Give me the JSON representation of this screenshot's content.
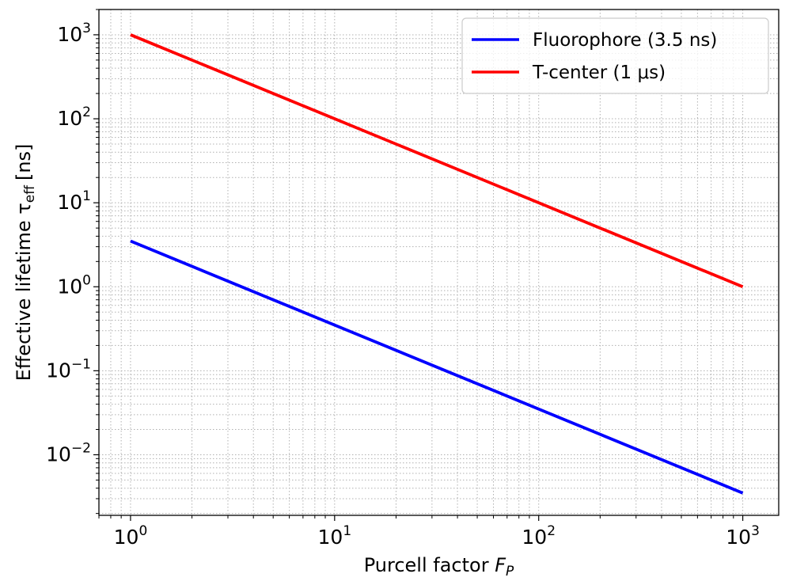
{
  "chart_data": {
    "type": "line",
    "title": "",
    "xlabel": "Purcell factor F_P",
    "xlabel_parts": {
      "base": "Purcell factor ",
      "symbol": "F",
      "subscript": "P"
    },
    "ylabel": "Effective lifetime τ_eff [ns]",
    "ylabel_parts": {
      "base": "Effective lifetime τ",
      "subscript": "eff",
      "unit": "[ns]"
    },
    "x_scale": "log",
    "y_scale": "log",
    "xlim": [
      0.7,
      1500
    ],
    "ylim": [
      0.0019,
      2000
    ],
    "x_ticks": [
      {
        "value": 1,
        "base": "10",
        "exp": "0"
      },
      {
        "value": 10,
        "base": "10",
        "exp": "1"
      },
      {
        "value": 100,
        "base": "10",
        "exp": "2"
      },
      {
        "value": 1000,
        "base": "10",
        "exp": "3"
      }
    ],
    "y_ticks": [
      {
        "value": 0.01,
        "base": "10",
        "exp": "−2"
      },
      {
        "value": 0.1,
        "base": "10",
        "exp": "−1"
      },
      {
        "value": 1,
        "base": "10",
        "exp": "0"
      },
      {
        "value": 10,
        "base": "10",
        "exp": "1"
      },
      {
        "value": 100,
        "base": "10",
        "exp": "2"
      },
      {
        "value": 1000,
        "base": "10",
        "exp": "3"
      }
    ],
    "grid": "major and minor, dotted",
    "legend_position": "top-right",
    "series": [
      {
        "name": "Fluorophore (3.5 ns)",
        "color": "#0000ff",
        "x": [
          1,
          10,
          100,
          1000
        ],
        "y": [
          3.5,
          0.35,
          0.035,
          0.0035
        ]
      },
      {
        "name": "T-center (1 μs)",
        "color": "#ff0000",
        "x": [
          1,
          10,
          100,
          1000
        ],
        "y": [
          1000,
          100,
          10,
          1
        ]
      }
    ]
  }
}
